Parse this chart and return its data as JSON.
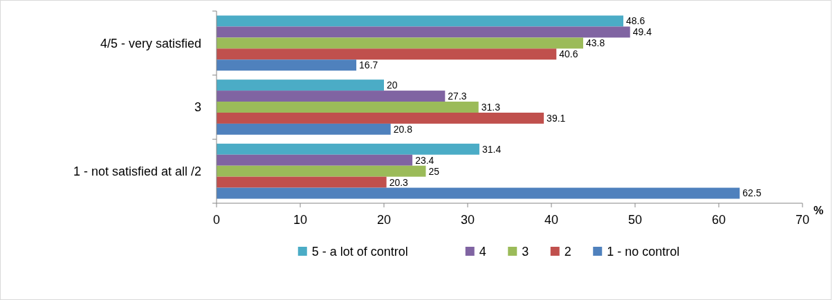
{
  "chart_data": {
    "type": "bar",
    "orientation": "horizontal",
    "categories": [
      "4/5 - very satisfied",
      "3",
      "1 - not satisfied at all /2"
    ],
    "series": [
      {
        "name": "5 - a lot of control",
        "color": "#4bacc6",
        "values": [
          48.6,
          20,
          31.4
        ]
      },
      {
        "name": "4",
        "color": "#8064a2",
        "values": [
          49.4,
          27.3,
          23.4
        ]
      },
      {
        "name": "3",
        "color": "#9bbb59",
        "values": [
          43.8,
          31.3,
          25
        ]
      },
      {
        "name": "2",
        "color": "#c0504d",
        "values": [
          40.6,
          39.1,
          20.3
        ]
      },
      {
        "name": "1 - no control",
        "color": "#4f81bd",
        "values": [
          16.7,
          20.8,
          62.5
        ]
      }
    ],
    "xlabel": "%",
    "xlim": [
      0,
      70
    ],
    "xticks": [
      0,
      10,
      20,
      30,
      40,
      50,
      60,
      70
    ],
    "data_labels": true,
    "legend": "bottom",
    "grid": false
  }
}
